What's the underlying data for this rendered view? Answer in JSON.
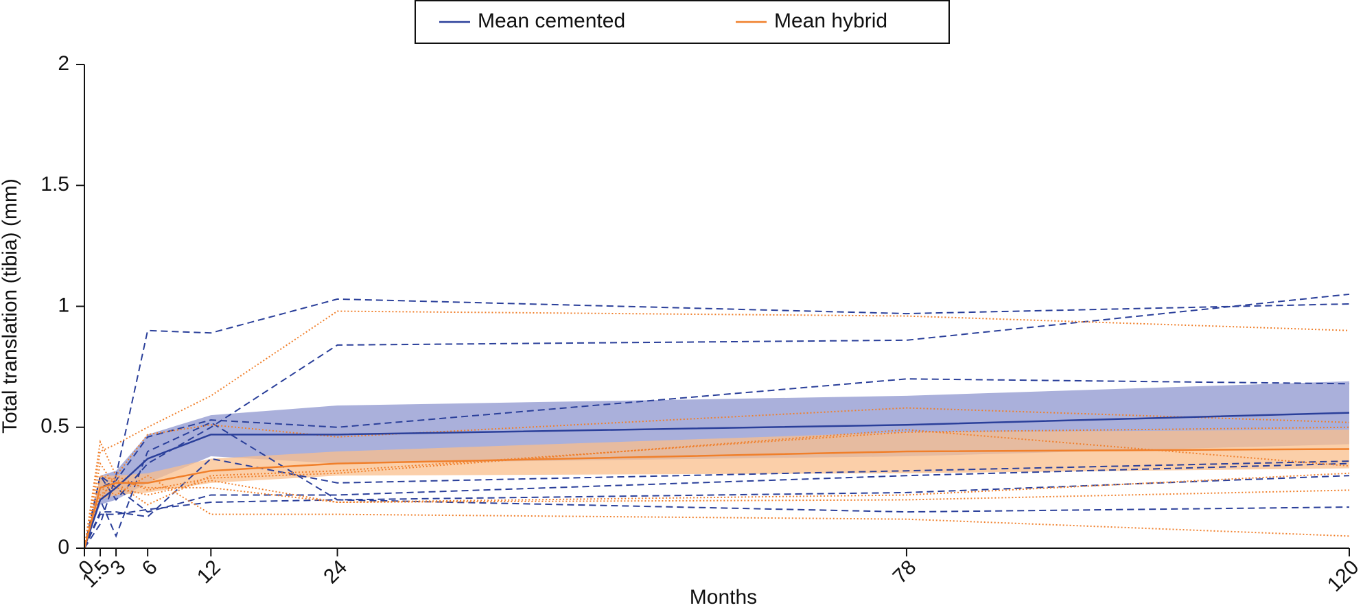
{
  "chart_data": {
    "type": "line",
    "xlabel": "Months",
    "ylabel": "Total translation (tibia) (mm)",
    "x": [
      0,
      1.5,
      3,
      6,
      12,
      24,
      78,
      120
    ],
    "xlim": [
      0,
      120
    ],
    "xticks": [
      0,
      1.5,
      3,
      6,
      12,
      24,
      78,
      120
    ],
    "ylim": [
      0,
      2
    ],
    "yticks": [
      0,
      0.5,
      1,
      1.5,
      2
    ],
    "legend": "top",
    "bands": [
      {
        "color": "#8e95cf",
        "upper": [
          0,
          0.3,
          0.32,
          0.47,
          0.55,
          0.59,
          0.63,
          0.69
        ],
        "lower": [
          0,
          0.18,
          0.2,
          0.27,
          0.38,
          0.35,
          0.38,
          0.43
        ]
      },
      {
        "color": "#f9bf8c",
        "upper": [
          0,
          0.3,
          0.3,
          0.31,
          0.37,
          0.4,
          0.48,
          0.49
        ],
        "lower": [
          0,
          0.2,
          0.22,
          0.23,
          0.27,
          0.3,
          0.31,
          0.33
        ]
      }
    ],
    "series": [
      {
        "name": "Mean cemented",
        "color": "#2a3f9a",
        "style": "solid",
        "values": [
          0,
          0.2,
          0.25,
          0.37,
          0.47,
          0.47,
          0.51,
          0.56
        ]
      },
      {
        "name": "Mean hybrid",
        "color": "#f07f2a",
        "style": "solid",
        "values": [
          0,
          0.25,
          0.27,
          0.27,
          0.32,
          0.35,
          0.4,
          0.41
        ]
      },
      {
        "color": "#2a3f9a",
        "style": "dashed",
        "values": [
          0,
          0.1,
          0.3,
          0.9,
          0.89,
          1.03,
          0.97,
          1.01
        ]
      },
      {
        "color": "#2a3f9a",
        "style": "dashed",
        "values": [
          0,
          0.25,
          0.28,
          0.46,
          0.53,
          0.5,
          0.7,
          0.68
        ]
      },
      {
        "color": "#2a3f9a",
        "style": "dashed",
        "values": [
          0,
          0.3,
          0.2,
          0.35,
          0.5,
          0.84,
          0.86,
          1.05
        ]
      },
      {
        "color": "#2a3f9a",
        "style": "dashed",
        "values": [
          0,
          0.2,
          0.05,
          0.4,
          0.52,
          0.2,
          0.23,
          0.3
        ]
      },
      {
        "color": "#2a3f9a",
        "style": "dashed",
        "values": [
          0,
          0.15,
          0.15,
          0.13,
          0.37,
          0.27,
          0.32,
          0.36
        ]
      },
      {
        "color": "#2a3f9a",
        "style": "dashed",
        "values": [
          0,
          0.14,
          0.14,
          0.16,
          0.19,
          0.2,
          0.15,
          0.17
        ]
      },
      {
        "color": "#2a3f9a",
        "style": "dashed",
        "values": [
          0,
          0.3,
          0.25,
          0.15,
          0.22,
          0.22,
          0.3,
          0.35
        ]
      },
      {
        "color": "#f07f2a",
        "style": "dotted",
        "values": [
          0,
          0.4,
          0.43,
          0.5,
          0.63,
          0.98,
          0.96,
          0.9
        ]
      },
      {
        "color": "#f07f2a",
        "style": "dotted",
        "values": [
          0,
          0.44,
          0.3,
          0.47,
          0.51,
          0.46,
          0.58,
          0.52
        ]
      },
      {
        "color": "#f07f2a",
        "style": "dotted",
        "values": [
          0,
          0.25,
          0.22,
          0.3,
          0.14,
          0.14,
          0.12,
          0.05
        ]
      },
      {
        "color": "#f07f2a",
        "style": "dotted",
        "values": [
          0,
          0.3,
          0.28,
          0.25,
          0.25,
          0.19,
          0.2,
          0.24
        ]
      },
      {
        "color": "#f07f2a",
        "style": "dotted",
        "values": [
          0,
          0.2,
          0.3,
          0.24,
          0.29,
          0.31,
          0.49,
          0.34
        ]
      },
      {
        "color": "#f07f2a",
        "style": "dotted",
        "values": [
          0,
          0.35,
          0.25,
          0.22,
          0.28,
          0.19,
          0.22,
          0.31
        ]
      },
      {
        "color": "#f07f2a",
        "style": "dotted",
        "values": [
          0,
          0.22,
          0.27,
          0.18,
          0.3,
          0.32,
          0.48,
          0.5
        ]
      }
    ]
  }
}
